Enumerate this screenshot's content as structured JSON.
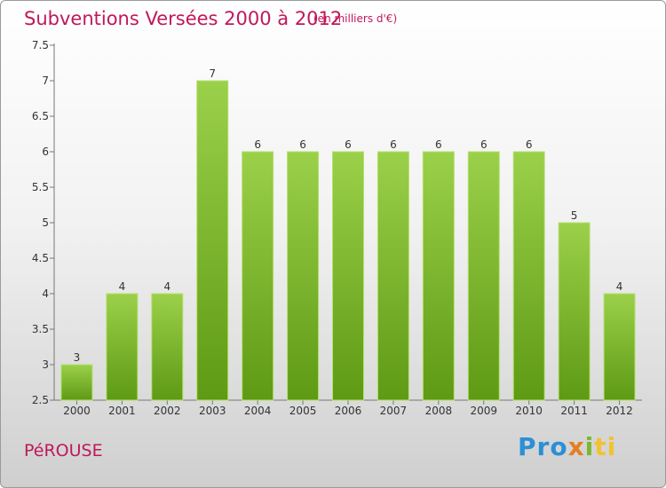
{
  "header": {
    "title": "Subventions Versées 2000 à 2012",
    "subtitle": "(en milliers d'€)"
  },
  "footer": {
    "town": "PéROUSE",
    "logo": [
      "Pro",
      "x",
      "i",
      "ti"
    ]
  },
  "colors": {
    "accent": "#c0185a",
    "bar_top": "#9bd04a",
    "bar_bottom": "#5e9a14"
  },
  "chart_data": {
    "type": "bar",
    "title": "Subventions Versées 2000 à 2012",
    "subtitle": "(en milliers d'€)",
    "xlabel": "",
    "ylabel": "",
    "categories": [
      "2000",
      "2001",
      "2002",
      "2003",
      "2004",
      "2005",
      "2006",
      "2007",
      "2008",
      "2009",
      "2010",
      "2011",
      "2012"
    ],
    "values": [
      3,
      4,
      4,
      7,
      6,
      6,
      6,
      6,
      6,
      6,
      6,
      5,
      4
    ],
    "data_labels": [
      "3",
      "4",
      "4",
      "7",
      "6",
      "6",
      "6",
      "6",
      "6",
      "6",
      "6",
      "5",
      "4"
    ],
    "ylim": [
      2.5,
      7.5
    ],
    "yticks": [
      2.5,
      3,
      3.5,
      4,
      4.5,
      5,
      5.5,
      6,
      6.5,
      7,
      7.5
    ],
    "ytick_labels": [
      "2.5",
      "3",
      "3.5",
      "4",
      "4.5",
      "5",
      "5.5",
      "6",
      "6.5",
      "7",
      "7.5"
    ],
    "grid": "none",
    "legend": "none"
  }
}
